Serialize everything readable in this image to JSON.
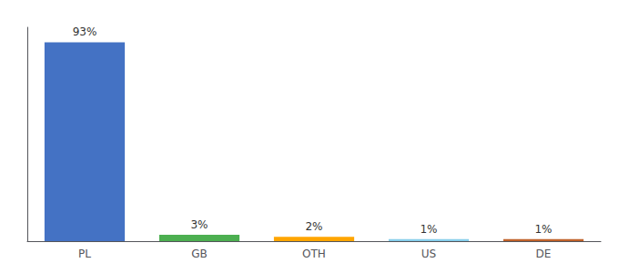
{
  "chart_data": {
    "type": "bar",
    "categories": [
      "PL",
      "GB",
      "OTH",
      "US",
      "DE"
    ],
    "values": [
      93,
      3,
      2,
      1,
      1
    ],
    "value_labels": [
      "93%",
      "3%",
      "2%",
      "1%",
      "1%"
    ],
    "colors": [
      "#4472C4",
      "#4CAF50",
      "#FFA500",
      "#87CEEB",
      "#C0622A"
    ],
    "ylim": [
      0,
      100
    ],
    "data_labels": true,
    "tick_labels": "x",
    "grid": false
  }
}
